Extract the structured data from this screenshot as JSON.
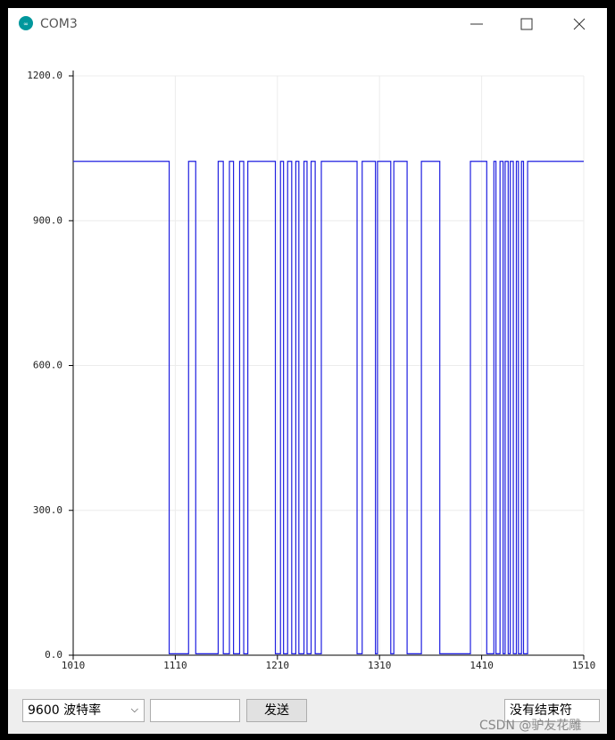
{
  "window": {
    "title": "COM3"
  },
  "chart_data": {
    "type": "line",
    "x": [
      1010,
      1104,
      1104,
      1123,
      1123,
      1130,
      1130,
      1152,
      1152,
      1157,
      1157,
      1163,
      1163,
      1167,
      1167,
      1173,
      1173,
      1177,
      1177,
      1181,
      1181,
      1208,
      1208,
      1213,
      1213,
      1216,
      1216,
      1220,
      1220,
      1224,
      1224,
      1228,
      1228,
      1231,
      1231,
      1236,
      1236,
      1239,
      1239,
      1243,
      1243,
      1247,
      1247,
      1253,
      1253,
      1288,
      1288,
      1293,
      1293,
      1306,
      1306,
      1308,
      1308,
      1321,
      1321,
      1324,
      1324,
      1337,
      1337,
      1351,
      1351,
      1369,
      1369,
      1399,
      1399,
      1415,
      1415,
      1422,
      1422,
      1424,
      1424,
      1428,
      1428,
      1431,
      1431,
      1433,
      1433,
      1436,
      1436,
      1438,
      1438,
      1441,
      1441,
      1444,
      1444,
      1446,
      1446,
      1449,
      1449,
      1451,
      1451,
      1455,
      1455,
      1510
    ],
    "series": [
      {
        "color": "#1f1fe0",
        "values": [
          1023,
          1023,
          3,
          3,
          1023,
          1023,
          3,
          3,
          1023,
          1023,
          3,
          3,
          1023,
          1023,
          3,
          3,
          1023,
          1023,
          3,
          3,
          1023,
          1023,
          3,
          3,
          1023,
          1023,
          3,
          3,
          1023,
          1023,
          3,
          3,
          1023,
          1023,
          3,
          3,
          1023,
          1023,
          3,
          3,
          1023,
          1023,
          3,
          3,
          1023,
          1023,
          3,
          3,
          1023,
          1023,
          3,
          3,
          1023,
          1023,
          3,
          3,
          1023,
          1023,
          3,
          3,
          1023,
          1023,
          3,
          3,
          1023,
          1023,
          3,
          3,
          1023,
          1023,
          3,
          3,
          1023,
          1023,
          3,
          3,
          1023,
          1023,
          3,
          3,
          1023,
          1023,
          3,
          3,
          1023,
          1023,
          3,
          3,
          1023,
          1023,
          3,
          3,
          1023,
          1023
        ]
      }
    ],
    "xlim": [
      1010,
      1510
    ],
    "xticks": [
      1010,
      1110,
      1210,
      1310,
      1410,
      1510
    ],
    "ylim": [
      0,
      1200
    ],
    "yticks": [
      {
        "value": 0,
        "label": "0.0"
      },
      {
        "value": 300,
        "label": "300.0"
      },
      {
        "value": 600,
        "label": "600.0"
      },
      {
        "value": 900,
        "label": "900.0"
      },
      {
        "value": 1200,
        "label": "1200.0"
      }
    ],
    "grid": true
  },
  "controls": {
    "baud_rate": "9600 波特率",
    "send": "发送",
    "line_ending": "没有结束符"
  },
  "watermark": "CSDN @驴友花雕"
}
